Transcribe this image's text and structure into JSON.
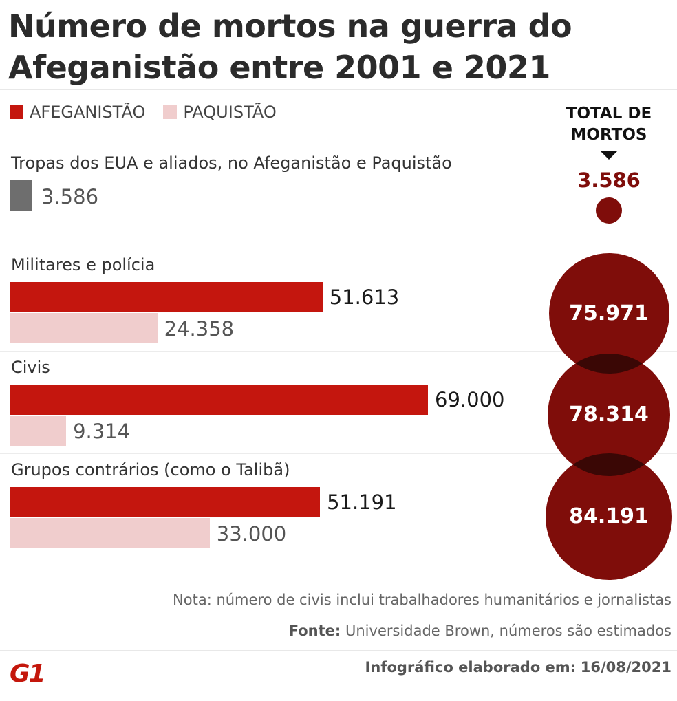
{
  "title": "Número de mortos na guerra do Afeganistão entre 2001 e 2021",
  "legend": [
    {
      "label": "AFEGANISTÃO",
      "color": "#c4160e"
    },
    {
      "label": "PAQUISTÃO",
      "color": "#f0cdcd"
    }
  ],
  "total_heading": "TOTAL DE MORTOS",
  "colors": {
    "troops_bar": "#6e6e6e",
    "total_circle": "#7f0d0a",
    "total_text_small": "#7f0d0a",
    "circle_overlap": "#3a0705"
  },
  "chart_data": {
    "type": "bar",
    "orientation": "horizontal",
    "series": [
      {
        "name": "AFEGANISTÃO",
        "color": "#c4160e"
      },
      {
        "name": "PAQUISTÃO",
        "color": "#f0cdcd"
      }
    ],
    "groups": [
      {
        "label": "Tropas dos EUA e aliados, no Afeganistão e Paquistão",
        "combined_value": 3586,
        "combined_label": "3.586",
        "total": 3586,
        "total_label": "3.586"
      },
      {
        "label": "Militares e polícia",
        "values": [
          51613,
          24358
        ],
        "value_labels": [
          "51.613",
          "24.358"
        ],
        "total": 75971,
        "total_label": "75.971"
      },
      {
        "label": "Civis",
        "values": [
          69000,
          9314
        ],
        "value_labels": [
          "69.000",
          "9.314"
        ],
        "total": 78314,
        "total_label": "78.314"
      },
      {
        "label": "Grupos contrários (como o Talibã)",
        "values": [
          51191,
          33000
        ],
        "value_labels": [
          "51.191",
          "33.000"
        ],
        "total": 84191,
        "total_label": "84.191"
      }
    ]
  },
  "note": "Nota: número de civis inclui trabalhadores humanitários e jornalistas",
  "source": {
    "label": "Fonte:",
    "text": "Universidade Brown, números são estimados"
  },
  "infographic": {
    "label": "Infográfico elaborado em:",
    "date": "16/08/2021"
  },
  "logo": {
    "text": "G1",
    "color": "#c4170c"
  }
}
